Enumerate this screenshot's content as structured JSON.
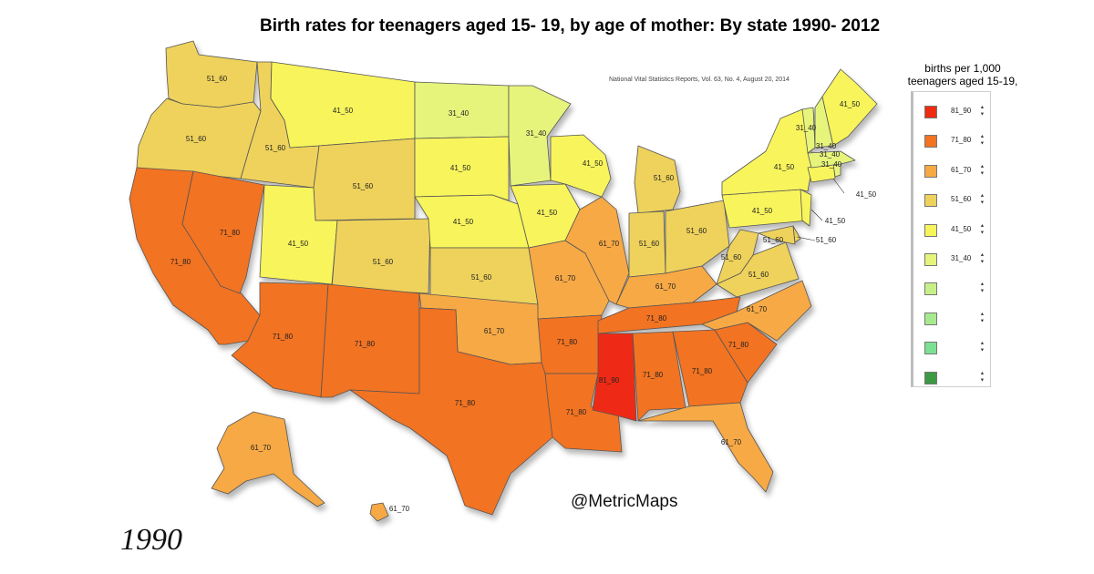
{
  "title": "Birth rates for teenagers aged 15- 19, by age of mother: By state 1990- 2012",
  "source": "National Vital Statistics Reports, Vol. 63, No. 4, August 20, 2014",
  "watermark": "@MetricMaps",
  "year": "1990",
  "legend": {
    "title_line1": "births per 1,000",
    "title_line2": "teenagers aged 15-19,",
    "items": [
      {
        "label": "81_90",
        "color": "#ee2a12"
      },
      {
        "label": "71_80",
        "color": "#f27322"
      },
      {
        "label": "61_70",
        "color": "#f7a944"
      },
      {
        "label": "51_60",
        "color": "#eed25c"
      },
      {
        "label": "41_50",
        "color": "#f8f45c"
      },
      {
        "label": "31_40",
        "color": "#e6f47c"
      },
      {
        "label": "",
        "color": "#c8f08a"
      },
      {
        "label": "",
        "color": "#a7ea8e"
      },
      {
        "label": "",
        "color": "#7ce092"
      },
      {
        "label": "",
        "color": "#3c9a44"
      }
    ]
  },
  "states": [
    {
      "name": "WA",
      "value": "51_60"
    },
    {
      "name": "OR",
      "value": "51_60"
    },
    {
      "name": "CA",
      "value": "71_80"
    },
    {
      "name": "NV",
      "value": "71_80"
    },
    {
      "name": "ID",
      "value": "51_60"
    },
    {
      "name": "MT",
      "value": "41_50"
    },
    {
      "name": "WY",
      "value": "51_60"
    },
    {
      "name": "UT",
      "value": "41_50"
    },
    {
      "name": "AZ",
      "value": "71_80"
    },
    {
      "name": "CO",
      "value": "51_60"
    },
    {
      "name": "NM",
      "value": "71_80"
    },
    {
      "name": "ND",
      "value": "31_40"
    },
    {
      "name": "SD",
      "value": "41_50"
    },
    {
      "name": "NE",
      "value": "41_50"
    },
    {
      "name": "KS",
      "value": "51_60"
    },
    {
      "name": "OK",
      "value": "61_70"
    },
    {
      "name": "TX",
      "value": "71_80"
    },
    {
      "name": "MN",
      "value": "31_40"
    },
    {
      "name": "IA",
      "value": "41_50"
    },
    {
      "name": "MO",
      "value": "61_70"
    },
    {
      "name": "AR",
      "value": "71_80"
    },
    {
      "name": "LA",
      "value": "71_80"
    },
    {
      "name": "WI",
      "value": "41_50"
    },
    {
      "name": "IL",
      "value": "61_70"
    },
    {
      "name": "MI",
      "value": "51_60"
    },
    {
      "name": "IN",
      "value": "51_60"
    },
    {
      "name": "OH",
      "value": "51_60"
    },
    {
      "name": "KY",
      "value": "61_70"
    },
    {
      "name": "TN",
      "value": "71_80"
    },
    {
      "name": "MS",
      "value": "81_90"
    },
    {
      "name": "AL",
      "value": "71_80"
    },
    {
      "name": "GA",
      "value": "71_80"
    },
    {
      "name": "FL",
      "value": "61_70"
    },
    {
      "name": "SC",
      "value": "71_80"
    },
    {
      "name": "NC",
      "value": "61_70"
    },
    {
      "name": "VA",
      "value": "51_60"
    },
    {
      "name": "WV",
      "value": "51_60"
    },
    {
      "name": "PA",
      "value": "41_50"
    },
    {
      "name": "NY",
      "value": "41_50"
    },
    {
      "name": "NJ",
      "value": "41_50"
    },
    {
      "name": "DE",
      "value": "51_60"
    },
    {
      "name": "MD",
      "value": "51_60"
    },
    {
      "name": "CT",
      "value": "41_50"
    },
    {
      "name": "RI",
      "value": "31_40"
    },
    {
      "name": "MA",
      "value": "31_40"
    },
    {
      "name": "VT",
      "value": "31_40"
    },
    {
      "name": "NH",
      "value": "31_40"
    },
    {
      "name": "ME",
      "value": "41_50"
    },
    {
      "name": "AK",
      "value": "61_70"
    },
    {
      "name": "HI",
      "value": "61_70"
    }
  ]
}
